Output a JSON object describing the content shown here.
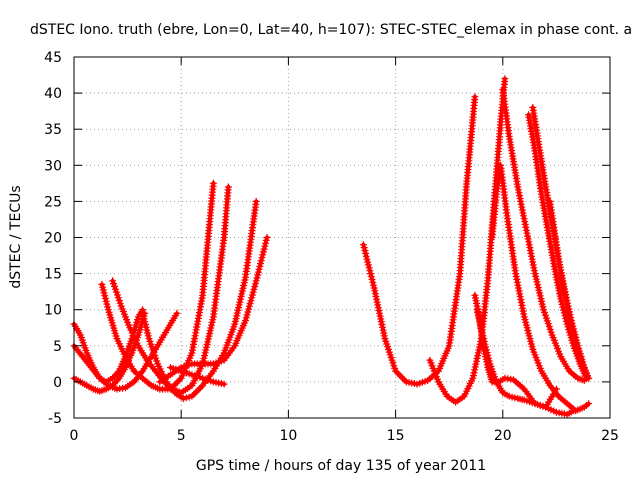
{
  "chart_data": {
    "type": "scatter",
    "title": "dSTEC Iono. truth (ebre, Lon=0, Lat=40, h=107): STEC-STEC_elemax in phase cont. a",
    "xlabel": "GPS time / hours of day 135 of year 2011",
    "ylabel": "dSTEC  / TECUs",
    "xlim": [
      0,
      25
    ],
    "ylim": [
      -5,
      45
    ],
    "xticks": [
      0,
      5,
      10,
      15,
      20,
      25
    ],
    "yticks": [
      -5,
      0,
      5,
      10,
      15,
      20,
      25,
      30,
      35,
      40,
      45
    ],
    "grid": true,
    "marker": "+",
    "color": "#ff0000",
    "series": [
      {
        "x": [
          0.0,
          0.3,
          0.6,
          0.9,
          1.2,
          1.5,
          1.8,
          2.1,
          2.4,
          2.7,
          3.0,
          3.2
        ],
        "y": [
          8.0,
          6.5,
          4.0,
          2.0,
          0.5,
          0.0,
          0.5,
          1.5,
          3.5,
          6.0,
          9.0,
          10.0
        ]
      },
      {
        "x": [
          0.0,
          0.4,
          0.8,
          1.2,
          1.6,
          2.0,
          2.4,
          2.8,
          3.2,
          3.6,
          4.0,
          4.4,
          4.8
        ],
        "y": [
          5.0,
          3.5,
          2.0,
          0.5,
          -0.5,
          -1.0,
          -0.8,
          0.0,
          1.5,
          3.5,
          5.5,
          7.5,
          9.5
        ]
      },
      {
        "x": [
          0.0,
          0.3,
          0.6,
          0.9,
          1.2,
          1.5,
          1.8,
          2.1,
          2.4,
          2.7,
          3.0,
          3.3
        ],
        "y": [
          0.5,
          0.0,
          -0.5,
          -1.0,
          -1.3,
          -1.0,
          -0.5,
          0.5,
          2.0,
          4.0,
          6.5,
          9.5
        ]
      },
      {
        "x": [
          1.3,
          1.6,
          2.0,
          2.4,
          2.8,
          3.2,
          3.6,
          4.0,
          4.5,
          5.0,
          5.5,
          6.0,
          6.5
        ],
        "y": [
          13.5,
          10.0,
          6.0,
          3.5,
          1.5,
          0.5,
          -0.5,
          -1.0,
          -1.0,
          0.5,
          4.0,
          12.0,
          27.5
        ]
      },
      {
        "x": [
          1.8,
          2.2,
          2.6,
          3.0,
          3.4,
          3.8,
          4.2,
          4.6,
          5.0,
          5.5,
          6.0,
          6.5,
          7.0,
          7.2
        ],
        "y": [
          14.0,
          10.5,
          7.5,
          5.0,
          3.0,
          1.5,
          0.0,
          -1.0,
          -1.5,
          -0.5,
          2.5,
          9.0,
          20.0,
          27.0
        ]
      },
      {
        "x": [
          3.2,
          3.5,
          3.9,
          4.3,
          4.7,
          5.1,
          5.5,
          6.0,
          6.5,
          7.0,
          7.5,
          8.0,
          8.5
        ],
        "y": [
          9.5,
          6.0,
          2.5,
          0.0,
          -1.5,
          -2.3,
          -2.0,
          -0.5,
          1.5,
          4.0,
          8.0,
          14.5,
          25.0
        ]
      },
      {
        "x": [
          4.0,
          4.5,
          5.0,
          5.5,
          6.0,
          6.5,
          7.0,
          7.5,
          8.0,
          8.5,
          9.0
        ],
        "y": [
          0.0,
          1.0,
          2.0,
          2.5,
          2.5,
          2.5,
          3.0,
          5.0,
          8.5,
          14.0,
          20.0
        ]
      },
      {
        "x": [
          4.5,
          5.0,
          5.5,
          6.0,
          6.5,
          7.0
        ],
        "y": [
          2.0,
          1.5,
          1.0,
          0.5,
          0.0,
          -0.3
        ]
      },
      {
        "x": [
          13.5,
          14.0,
          14.5,
          15.0,
          15.5,
          16.0,
          16.5,
          17.0,
          17.5,
          18.0,
          18.3,
          18.7
        ],
        "y": [
          19.0,
          13.0,
          6.0,
          1.5,
          0.0,
          -0.3,
          0.2,
          1.5,
          5.0,
          15.0,
          27.0,
          39.5
        ]
      },
      {
        "x": [
          16.6,
          17.0,
          17.4,
          17.8,
          18.2,
          18.6,
          19.0,
          19.3,
          19.6,
          19.9,
          20.1
        ],
        "y": [
          3.0,
          0.0,
          -2.0,
          -2.8,
          -2.0,
          0.5,
          6.0,
          14.0,
          25.0,
          36.0,
          42.0
        ]
      },
      {
        "x": [
          18.7,
          18.9,
          19.1,
          19.3,
          19.5,
          19.8,
          20.1,
          20.5,
          21.0,
          21.5,
          22.0,
          22.5
        ],
        "y": [
          12.0,
          9.0,
          5.0,
          2.0,
          0.0,
          0.0,
          0.5,
          0.3,
          -1.0,
          -3.0,
          -3.5,
          -1.0
        ]
      },
      {
        "x": [
          18.8,
          19.1,
          19.4,
          19.7,
          20.0,
          20.3,
          20.7,
          21.0,
          21.5,
          22.0,
          22.5,
          23.0,
          23.3
        ],
        "y": [
          10.0,
          6.0,
          2.5,
          0.0,
          -1.5,
          -2.0,
          -2.3,
          -2.5,
          -3.0,
          -3.5,
          -4.2,
          -4.5,
          -4.0
        ]
      },
      {
        "x": [
          19.5,
          19.7,
          19.9,
          20.2,
          20.6,
          21.0,
          21.4,
          21.8,
          22.2,
          22.6,
          23.0,
          23.4,
          23.8,
          24.0
        ],
        "y": [
          20.0,
          26.0,
          30.0,
          23.0,
          15.0,
          9.0,
          4.5,
          1.5,
          -0.5,
          -2.0,
          -3.0,
          -4.0,
          -3.5,
          -3.0
        ]
      },
      {
        "x": [
          20.0,
          20.3,
          20.7,
          21.1,
          21.5,
          21.9,
          22.3,
          22.7,
          23.1,
          23.5,
          23.8
        ],
        "y": [
          40.5,
          34.0,
          27.0,
          21.0,
          15.0,
          10.0,
          6.5,
          3.5,
          1.5,
          0.5,
          0.2
        ]
      },
      {
        "x": [
          21.2,
          21.5,
          21.8,
          22.1,
          22.4,
          22.7,
          23.0,
          23.3,
          23.6,
          23.9
        ],
        "y": [
          37.0,
          32.0,
          26.0,
          21.0,
          16.0,
          11.5,
          8.0,
          5.0,
          2.5,
          0.5
        ]
      },
      {
        "x": [
          21.4,
          21.7,
          22.0,
          22.3,
          22.6,
          22.9,
          23.2,
          23.5,
          23.8,
          24.0
        ],
        "y": [
          38.0,
          32.5,
          27.0,
          22.0,
          17.0,
          12.5,
          8.5,
          5.0,
          2.0,
          0.5
        ]
      },
      {
        "x": [
          22.2,
          22.5,
          22.8,
          23.1,
          23.4,
          23.7,
          24.0
        ],
        "y": [
          25.0,
          19.0,
          13.5,
          9.0,
          5.5,
          2.5,
          0.5
        ]
      }
    ]
  }
}
